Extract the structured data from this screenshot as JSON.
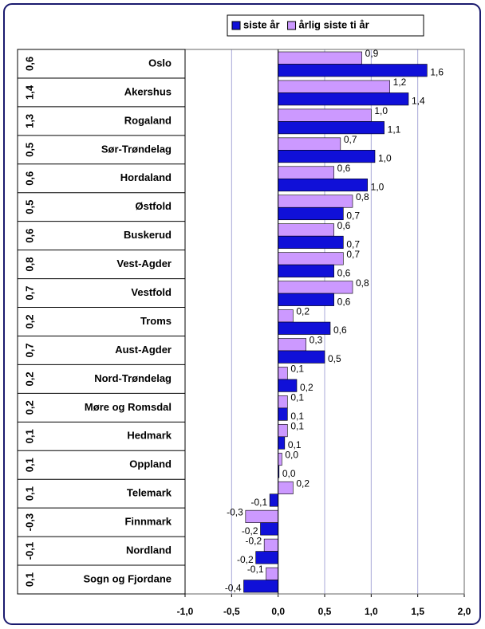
{
  "chart_data": {
    "type": "hbar",
    "categories": [
      "Oslo",
      "Akershus",
      "Rogaland",
      "Sør-Trøndelag",
      "Hordaland",
      "Østfold",
      "Buskerud",
      "Vest-Agder",
      "Vestfold",
      "Troms",
      "Aust-Agder",
      "Nord-Trøndelag",
      "Møre og Romsdal",
      "Hedmark",
      "Oppland",
      "Telemark",
      "Finnmark",
      "Nordland",
      "Sogn og Fjordane"
    ],
    "side_values": [
      0.6,
      1.4,
      1.3,
      0.5,
      0.6,
      0.5,
      0.6,
      0.8,
      0.7,
      0.2,
      0.7,
      0.2,
      0.2,
      0.1,
      0.1,
      0.1,
      -0.3,
      -0.1,
      0.1
    ],
    "side_value_labels": [
      "0,6",
      "1,4",
      "1,3",
      "0,5",
      "0,6",
      "0,5",
      "0,6",
      "0,8",
      "0,7",
      "0,2",
      "0,7",
      "0,2",
      "0,2",
      "0,1",
      "0,1",
      "0,1",
      "-0,3",
      "-0,1",
      "0,1"
    ],
    "series": [
      {
        "name": "årlig siste ti år",
        "color": "#cc99ff",
        "values": [
          0.9,
          1.2,
          1.0,
          0.67,
          0.6,
          0.8,
          0.6,
          0.7,
          0.8,
          0.16,
          0.3,
          0.1,
          0.1,
          0.1,
          0.04,
          0.16,
          -0.35,
          -0.15,
          -0.13
        ],
        "value_labels": [
          "0,9",
          "1,2",
          "1,0",
          "0,7",
          "0,6",
          "0,8",
          "0,6",
          "0,7",
          "0,8",
          "0,2",
          "0,3",
          "0,1",
          "0,1",
          "0,1",
          "0,0",
          "0,2",
          "-0,3",
          "-0,2",
          "-0,1"
        ]
      },
      {
        "name": "siste år",
        "color": "#1010d8",
        "values": [
          1.6,
          1.4,
          1.14,
          1.04,
          0.96,
          0.7,
          0.7,
          0.6,
          0.6,
          0.56,
          0.5,
          0.2,
          0.1,
          0.07,
          0.01,
          -0.09,
          -0.19,
          -0.24,
          -0.37
        ],
        "value_labels": [
          "1,6",
          "1,4",
          "1,1",
          "1,0",
          "1,0",
          "0,7",
          "0,7",
          "0,6",
          "0,6",
          "0,6",
          "0,5",
          "0,2",
          "0,1",
          "0,1",
          "0,0",
          "-0,1",
          "-0,2",
          "-0,2",
          "-0,4"
        ]
      }
    ],
    "legend_order": [
      1,
      0
    ],
    "legend": "top",
    "xlim": [
      -1.0,
      2.0
    ],
    "xticks": [
      {
        "value": -1.0,
        "label": "-1,0"
      },
      {
        "value": -0.5,
        "label": "-0,5"
      },
      {
        "value": 0.0,
        "label": "0,0"
      },
      {
        "value": 0.5,
        "label": "0,5"
      },
      {
        "value": 1.0,
        "label": "1,0"
      },
      {
        "value": 1.5,
        "label": "1,5"
      },
      {
        "value": 2.0,
        "label": "2,0"
      }
    ],
    "grid": true
  }
}
